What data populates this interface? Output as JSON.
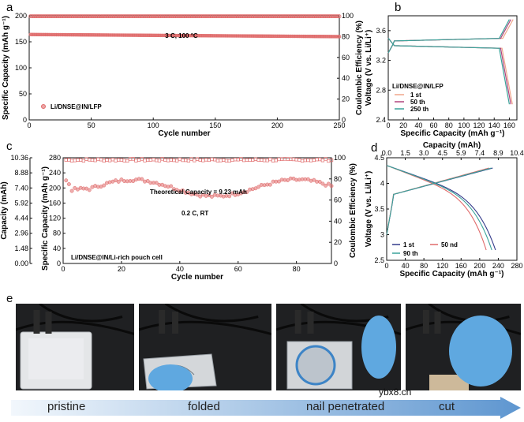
{
  "panel_labels": {
    "a": "a",
    "b": "b",
    "c": "c",
    "d": "d",
    "e": "e"
  },
  "chart_data": [
    {
      "id": "a",
      "type": "scatter",
      "xlabel": "Cycle number",
      "ylabel": "Specific Capacity (mAh g⁻¹)",
      "y2label": "Coulombic Efficiency (%)",
      "xlim": [
        0,
        250
      ],
      "ylim": [
        0,
        200
      ],
      "y2lim": [
        0,
        100
      ],
      "xticks": [
        0,
        50,
        100,
        150,
        200,
        250
      ],
      "yticks": [
        0,
        50,
        100,
        150,
        200
      ],
      "y2ticks": [
        0,
        20,
        40,
        60,
        80,
        100
      ],
      "annotation": "3 C, 100 °C",
      "legend": "Li/DNSE@IN/LFP",
      "legend_position": "bottom-left",
      "series": [
        {
          "name": "Li/DNSE@IN/LFP",
          "axis": "left",
          "start": 164,
          "end": 160,
          "n": 250,
          "marker": "filled-circle",
          "color": "#e06a6a"
        },
        {
          "name": "Coulombic Efficiency",
          "axis": "right",
          "value": 99.5,
          "n": 250,
          "marker": "open-circle",
          "color": "#e06a6a"
        }
      ]
    },
    {
      "id": "b",
      "type": "line",
      "xlabel": "Specific Capacity (mAh g⁻¹)",
      "ylabel": "Voltage (V vs. Li/Li⁺)",
      "xlim": [
        0,
        170
      ],
      "ylim": [
        2.4,
        3.8
      ],
      "xticks": [
        0,
        20,
        40,
        60,
        80,
        100,
        120,
        140,
        160
      ],
      "yticks": [
        2.4,
        2.8,
        3.2,
        3.6
      ],
      "legend_title": "Li/DNSE@IN/LFP",
      "legend_position": "bottom-left",
      "series": [
        {
          "name": "1 st",
          "color": "#f0a58a",
          "charge_cap": 165,
          "discharge_cap": 164
        },
        {
          "name": "50 th",
          "color": "#b0447e",
          "charge_cap": 162,
          "discharge_cap": 162
        },
        {
          "name": "250 th",
          "color": "#3aa39a",
          "charge_cap": 160,
          "discharge_cap": 160
        }
      ]
    },
    {
      "id": "c",
      "type": "scatter",
      "xlabel": "Cycle number",
      "ylabel": "Specific Capacity (mAh g⁻¹)",
      "y0label": "Capacity (mAh)",
      "y2label": "Coulombic Efficiency (%)",
      "xlim": [
        0,
        92
      ],
      "ylim": [
        0,
        280
      ],
      "y2lim": [
        0,
        100
      ],
      "xticks": [
        0,
        20,
        40,
        60,
        80
      ],
      "yticks": [
        0,
        40,
        80,
        120,
        160,
        200,
        240,
        280
      ],
      "y0ticks": [
        "0.00",
        "1.48",
        "2.96",
        "4.44",
        "5.92",
        "7.40",
        "8.88",
        "10.36"
      ],
      "y2ticks": [
        0,
        20,
        40,
        60,
        80,
        100
      ],
      "annotations": [
        "Theoretical Capacity = 9.23 mAh",
        "0.2 C, RT"
      ],
      "legend": "Li/DNSE@IN/Li-rich pouch cell",
      "legend_position": "bottom-left",
      "series": [
        {
          "name": "Specific Capacity",
          "axis": "left",
          "n": 92,
          "marker": "filled-circle",
          "color": "#e06a6a"
        },
        {
          "name": "Coulombic Efficiency",
          "axis": "right",
          "value": 98,
          "n": 92,
          "marker": "open-circle",
          "color": "#e06a6a"
        }
      ]
    },
    {
      "id": "d",
      "type": "line",
      "xlabel": "Specific Capacity (mAh g⁻¹)",
      "x2label": "Capacity (mAh)",
      "ylabel": "Voltage (V vs. Li/Li⁺)",
      "xlim": [
        0,
        280
      ],
      "ylim": [
        2.5,
        4.5
      ],
      "xticks": [
        0,
        40,
        80,
        120,
        160,
        200,
        240,
        280
      ],
      "x2ticks": [
        "0.0",
        "1.5",
        "3.0",
        "4.5",
        "5.9",
        "7.4",
        "8.9",
        "10.4"
      ],
      "yticks": [
        2.5,
        3.0,
        3.5,
        4.0,
        4.5
      ],
      "legend_position": "bottom-left",
      "series": [
        {
          "name": "1 st",
          "color": "#333a8a",
          "charge_cap": 228,
          "discharge_cap": 234
        },
        {
          "name": "50 nd",
          "color": "#e06a6a",
          "charge_cap": 220,
          "discharge_cap": 214
        },
        {
          "name": "90 th",
          "color": "#3aa39a",
          "charge_cap": 225,
          "discharge_cap": 226
        }
      ]
    }
  ],
  "photos": [
    {
      "label": "pristine",
      "state": "pristine"
    },
    {
      "label": "folded",
      "state": "folded"
    },
    {
      "label": "nail penetrated",
      "state": "nail"
    },
    {
      "label": "cut",
      "state": "cut"
    }
  ],
  "watermark": "ybx8.cn"
}
